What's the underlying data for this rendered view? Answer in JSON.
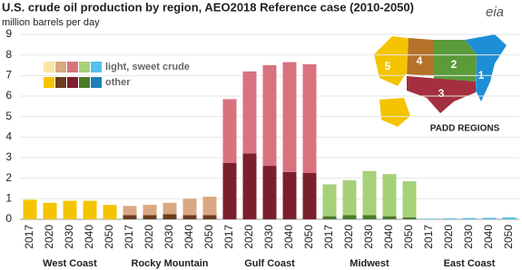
{
  "chart_data": {
    "type": "stacked-bar",
    "title": "U.S. crude oil production by region, AEO2018 Reference case (2010-2050)",
    "subtitle": "million barrels per day",
    "logo": "eia",
    "groups": [
      "West Coast",
      "Rocky Mountain",
      "Gulf Coast",
      "Midwest",
      "East Coast"
    ],
    "categories": [
      "2017",
      "2020",
      "2030",
      "2040",
      "2050",
      "2017",
      "2020",
      "2030",
      "2040",
      "2050",
      "2017",
      "2020",
      "2030",
      "2040",
      "2050",
      "2017",
      "2020",
      "2030",
      "2040",
      "2050",
      "2017",
      "2020",
      "2030",
      "2040",
      "2050"
    ],
    "series": [
      {
        "name": "other",
        "colors": [
          "#f5c400",
          "#6b3d1e",
          "#7b1f2e",
          "#4d7a2a",
          "#1e7fb8"
        ],
        "values": [
          0.95,
          0.8,
          0.9,
          0.9,
          0.7,
          0.2,
          0.2,
          0.25,
          0.2,
          0.2,
          2.75,
          3.2,
          2.6,
          2.3,
          2.25,
          0.15,
          0.2,
          0.2,
          0.15,
          0.1,
          0,
          0,
          0,
          0,
          0
        ]
      },
      {
        "name": "light, sweet crude",
        "colors": [
          "#fae7a5",
          "#d9a882",
          "#d9727f",
          "#a6d17a",
          "#55c1ec"
        ],
        "values": [
          0,
          0,
          0,
          0,
          0,
          0.45,
          0.5,
          0.55,
          0.8,
          0.9,
          3.1,
          4.0,
          4.9,
          5.35,
          5.3,
          1.55,
          1.7,
          2.15,
          2.05,
          1.75,
          0.03,
          0.04,
          0.06,
          0.07,
          0.09
        ]
      }
    ],
    "ylim": [
      0,
      9
    ],
    "yticks": [
      0,
      1,
      2,
      3,
      4,
      5,
      6,
      7,
      8,
      9
    ],
    "grid": true,
    "map_label": "PADD REGIONS",
    "padd_labels": [
      "1",
      "2",
      "3",
      "4",
      "5"
    ]
  }
}
